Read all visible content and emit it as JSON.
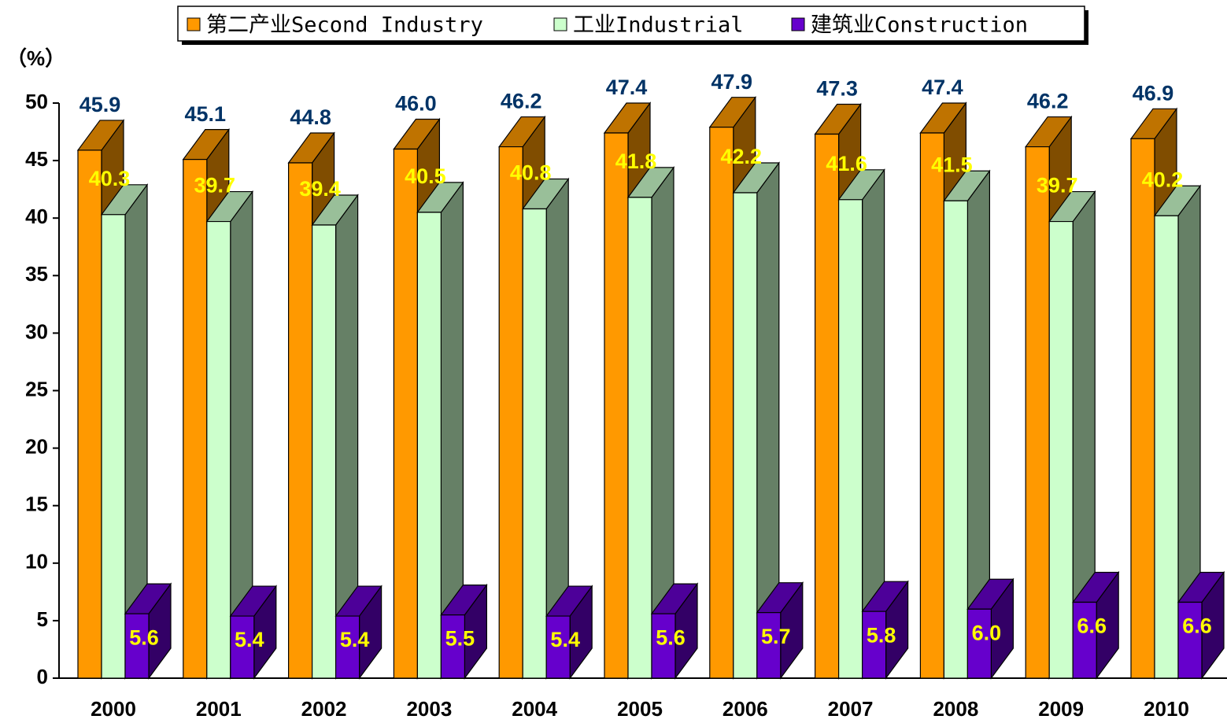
{
  "chart_data": {
    "type": "bar3d",
    "y_label": "（%）",
    "categories": [
      "2000",
      "2001",
      "2002",
      "2003",
      "2004",
      "2005",
      "2006",
      "2007",
      "2008",
      "2009",
      "2010"
    ],
    "series": [
      {
        "name": "第二产业Second Industry",
        "color": "#FF9900",
        "values": [
          45.9,
          45.1,
          44.8,
          46.0,
          46.2,
          47.4,
          47.9,
          47.3,
          47.4,
          46.2,
          46.9
        ],
        "value_labels": [
          "45.9",
          "45.1",
          "44.8",
          "46.0",
          "46.2",
          "47.4",
          "47.9",
          "47.3",
          "47.4",
          "46.2",
          "46.9"
        ]
      },
      {
        "name": "工业Industrial",
        "color": "#CCFFCC",
        "values": [
          40.3,
          39.7,
          39.4,
          40.5,
          40.8,
          41.8,
          42.2,
          41.6,
          41.5,
          39.7,
          40.2
        ]
      },
      {
        "name": "建筑业Construction",
        "color": "#6600CC",
        "values": [
          5.6,
          5.4,
          5.4,
          5.5,
          5.4,
          5.6,
          5.7,
          5.8,
          6.0,
          6.6,
          6.6
        ],
        "value_labels": [
          "5.6",
          "5.4",
          "5.4",
          "5.5",
          "5.4",
          "5.6",
          "5.7",
          "5.8",
          "6.0",
          "6.6",
          "6.6"
        ]
      }
    ],
    "ylim": [
      0,
      50
    ],
    "yticks": [
      0,
      5,
      10,
      15,
      20,
      25,
      30,
      35,
      40,
      45,
      50
    ],
    "legend": "top"
  }
}
